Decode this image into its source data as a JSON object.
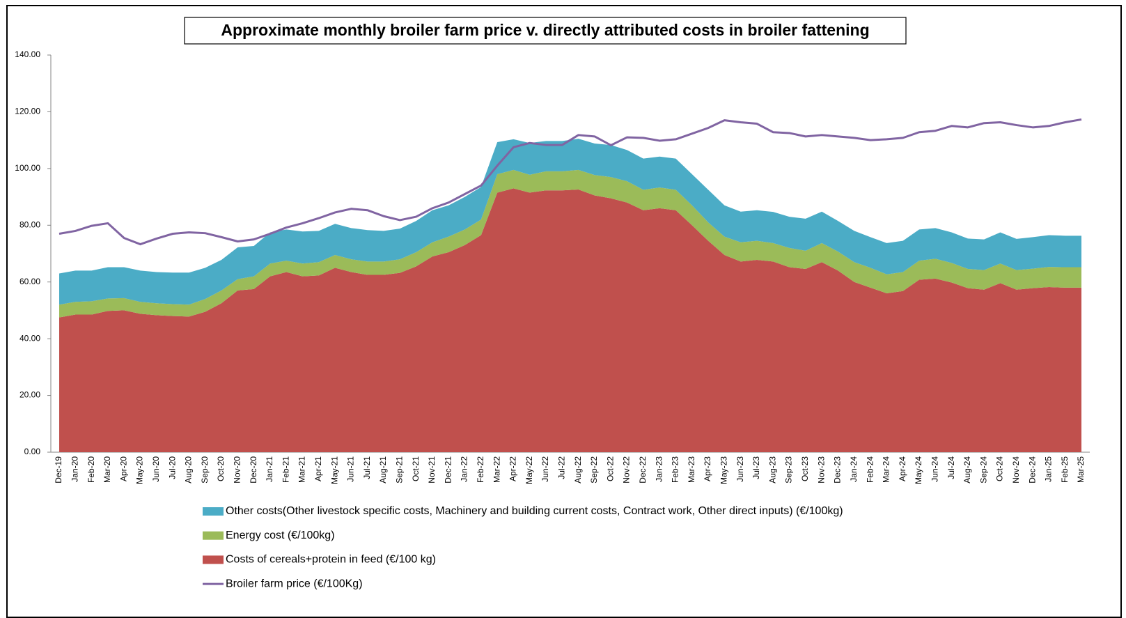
{
  "chart_data": {
    "type": "stacked-area-line",
    "title": "Approximate monthly broiler farm price v. directly attributed costs in broiler fattening",
    "categories": [
      "Dec-19",
      "Jan-20",
      "Feb-20",
      "Mar-20",
      "Apr-20",
      "May-20",
      "Jun-20",
      "Jul-20",
      "Aug-20",
      "Sep-20",
      "Oct-20",
      "Nov-20",
      "Dec-20",
      "Jan-21",
      "Feb-21",
      "Mar-21",
      "Apr-21",
      "May-21",
      "Jun-21",
      "Jul-21",
      "Aug-21",
      "Sep-21",
      "Oct-21",
      "Nov-21",
      "Dec-21",
      "Jan-22",
      "Feb-22",
      "Mar-22",
      "Apr-22",
      "May-22",
      "Jun-22",
      "Jul-22",
      "Aug-22",
      "Sep-22",
      "Oct-22",
      "Nov-22",
      "Dec-22",
      "Jan-23",
      "Feb-23",
      "Mar-23",
      "Apr-23",
      "May-23",
      "Jun-23",
      "Jul-23",
      "Aug-23",
      "Sep-23",
      "Oct-23",
      "Nov-23",
      "Dec-23",
      "Jan-24",
      "Feb-24",
      "Mar-24",
      "Apr-24",
      "May-24",
      "Jun-24",
      "Jul-24",
      "Aug-24",
      "Sep-24",
      "Oct-24",
      "Nov-24",
      "Dec-24",
      "Jan-25",
      "Feb-25",
      "Mar-25"
    ],
    "series": [
      {
        "name": "Costs of cereals+protein in feed (€/100 kg)",
        "type": "area",
        "color": "#c0504d",
        "values": [
          47.5,
          48.5,
          48.5,
          49.8,
          50,
          48.8,
          48.3,
          48,
          47.8,
          49.5,
          52.5,
          57,
          57.5,
          62,
          63.5,
          62,
          62.3,
          65,
          63.5,
          62.5,
          62.5,
          63.2,
          65.5,
          69,
          70.5,
          73,
          76.5,
          91.5,
          93,
          91.5,
          92.3,
          92.3,
          92.6,
          90.5,
          89.5,
          88,
          85.3,
          86,
          85.3,
          80,
          74.5,
          69.5,
          67.2,
          67.8,
          67.2,
          65.2,
          64.6,
          67,
          64,
          60,
          58,
          56,
          56.8,
          60.8,
          61.2,
          59.8,
          57.8,
          57.3,
          59.6,
          57.3,
          57.8,
          58.2,
          58,
          58
        ]
      },
      {
        "name": "Energy cost (€/100kg)",
        "type": "area",
        "color": "#9bbb59",
        "values": [
          4.5,
          4.5,
          4.7,
          4.4,
          4.3,
          4.2,
          4.2,
          4.2,
          4.2,
          4.5,
          4.5,
          4,
          4.5,
          4.5,
          4,
          4.5,
          4.7,
          4.5,
          4.5,
          4.7,
          4.7,
          4.8,
          5,
          5,
          5.5,
          5.5,
          5.5,
          6.5,
          6.5,
          6.3,
          6.7,
          6.7,
          6.9,
          7.2,
          7.5,
          7.5,
          7.2,
          7.3,
          7.2,
          7,
          6.5,
          6.5,
          6.8,
          6.7,
          6.5,
          6.8,
          6.4,
          6.7,
          6.7,
          7,
          7,
          6.7,
          6.7,
          6.7,
          7,
          6.9,
          6.8,
          6.9,
          6.9,
          6.9,
          6.9,
          7.1,
          7.2,
          7.2
        ]
      },
      {
        "name": "Other costs(Other livestock specific costs, Machinery and building current costs, Contract work, Other direct inputs) (€/100kg)",
        "type": "area",
        "color": "#4bacc6",
        "values": [
          11,
          11,
          10.8,
          11,
          10.9,
          11,
          11,
          11.1,
          11.3,
          11,
          10.8,
          11.2,
          10.7,
          11,
          11,
          11.3,
          11,
          11,
          11,
          11.1,
          10.8,
          10.8,
          11,
          11.3,
          11,
          11.5,
          11.5,
          11.3,
          10.8,
          11.2,
          10.7,
          10.7,
          11,
          11.1,
          11.3,
          11,
          11,
          10.9,
          11,
          11,
          11.5,
          11,
          10.8,
          10.8,
          11,
          11,
          11.3,
          11.1,
          10.8,
          11,
          10.8,
          11,
          11,
          11,
          10.8,
          10.8,
          10.7,
          10.8,
          11,
          11,
          11.1,
          11.2,
          11.1,
          11.1
        ]
      },
      {
        "name": "Broiler farm price (€/100Kg)",
        "type": "line",
        "color": "#8064a2",
        "values": [
          77,
          78,
          79.8,
          80.7,
          75.5,
          73.3,
          75.3,
          77,
          77.5,
          77.2,
          75.8,
          74.3,
          75,
          77,
          79.2,
          80.7,
          82.5,
          84.5,
          85.8,
          85.3,
          83.2,
          81.8,
          83,
          86,
          88,
          91,
          94,
          101,
          107.5,
          109,
          108.3,
          108.3,
          111.8,
          111.3,
          108.2,
          111,
          110.8,
          109.8,
          110.3,
          112.3,
          114.3,
          117,
          116.3,
          115.8,
          112.8,
          112.5,
          111.3,
          111.8,
          111.3,
          110.8,
          110,
          110.3,
          110.8,
          112.8,
          113.3,
          115,
          114.5,
          116,
          116.3,
          115.3,
          114.5,
          115,
          116.3,
          117.3
        ]
      }
    ],
    "ylim": [
      0,
      140
    ],
    "yticks": [
      {
        "value": 0,
        "label": "0.00"
      },
      {
        "value": 20,
        "label": "20.00"
      },
      {
        "value": 40,
        "label": "40.00"
      },
      {
        "value": 60,
        "label": "60.00"
      },
      {
        "value": 80,
        "label": "80.00"
      },
      {
        "value": 100,
        "label": "100.00"
      },
      {
        "value": 120,
        "label": "120.00"
      },
      {
        "value": 140,
        "label": "140.00"
      }
    ],
    "grid": false,
    "legend": "bottom"
  }
}
